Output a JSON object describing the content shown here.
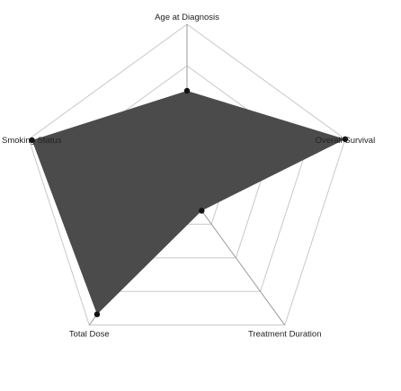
{
  "chart_data": {
    "type": "radar",
    "axes": [
      "Age at Diagnosis",
      "Overall Survival",
      "Treatment Duration",
      "Total Dose",
      "Smoking Status"
    ],
    "series": [
      {
        "values": [
          0.6,
          1.0,
          0.15,
          0.92,
          0.98
        ]
      }
    ],
    "range": [
      0,
      1
    ],
    "gridLevels": 4,
    "legend": "none",
    "colors": {
      "fill": "#4b4b4b",
      "point": "#111111",
      "grid": "#c8c8c8",
      "spoke": "#9a9a9a"
    }
  }
}
